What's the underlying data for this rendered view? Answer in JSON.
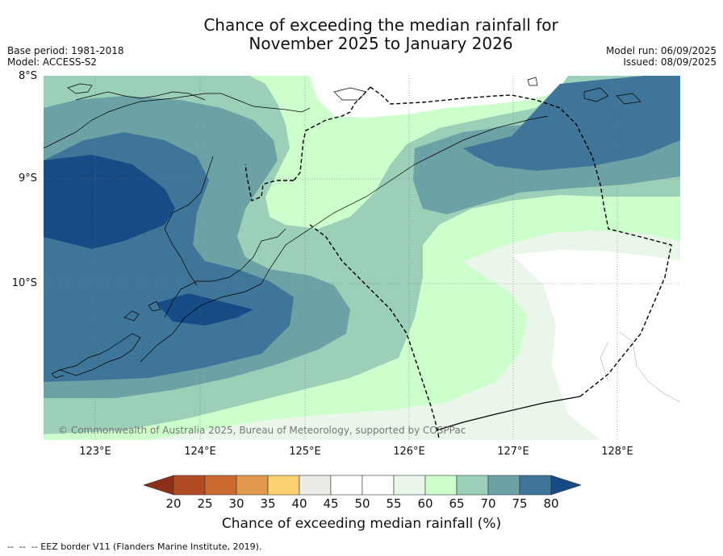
{
  "title_line1": "Chance of exceeding the median rainfall for",
  "title_line2": "November 2025 to January 2026",
  "base_period": "Base period: 1981-2018",
  "model": "Model: ACCESS-S2",
  "model_run": "Model run: 06/09/2025",
  "issued": "Issued: 08/09/2025",
  "lat_labels": [
    "8°S",
    "9°S",
    "10°S"
  ],
  "lon_labels": [
    "123°E",
    "124°E",
    "125°E",
    "126°E",
    "127°E",
    "128°E"
  ],
  "copyright": "© Commonwealth of Australia 2025, Bureau of Meteorology, supported by COSPPac",
  "colorbar": {
    "ticks": [
      "20",
      "25",
      "30",
      "35",
      "40",
      "45",
      "50",
      "55",
      "60",
      "65",
      "70",
      "75",
      "80"
    ],
    "colors": [
      "#8b2f18",
      "#b24a25",
      "#cc6a33",
      "#e19a4d",
      "#fdd26e",
      "#ecebe6",
      "#ffffff",
      "#ffffff",
      "#ebf6ea",
      "#ccffcc",
      "#9ccfb7",
      "#6ca2a6",
      "#3e7598",
      "#164b85"
    ],
    "label": "Chance of exceeding median rainfall (%)"
  },
  "footnote": "--  --  -- EEZ border V11 (Flanders Marine Institute, 2019)."
}
